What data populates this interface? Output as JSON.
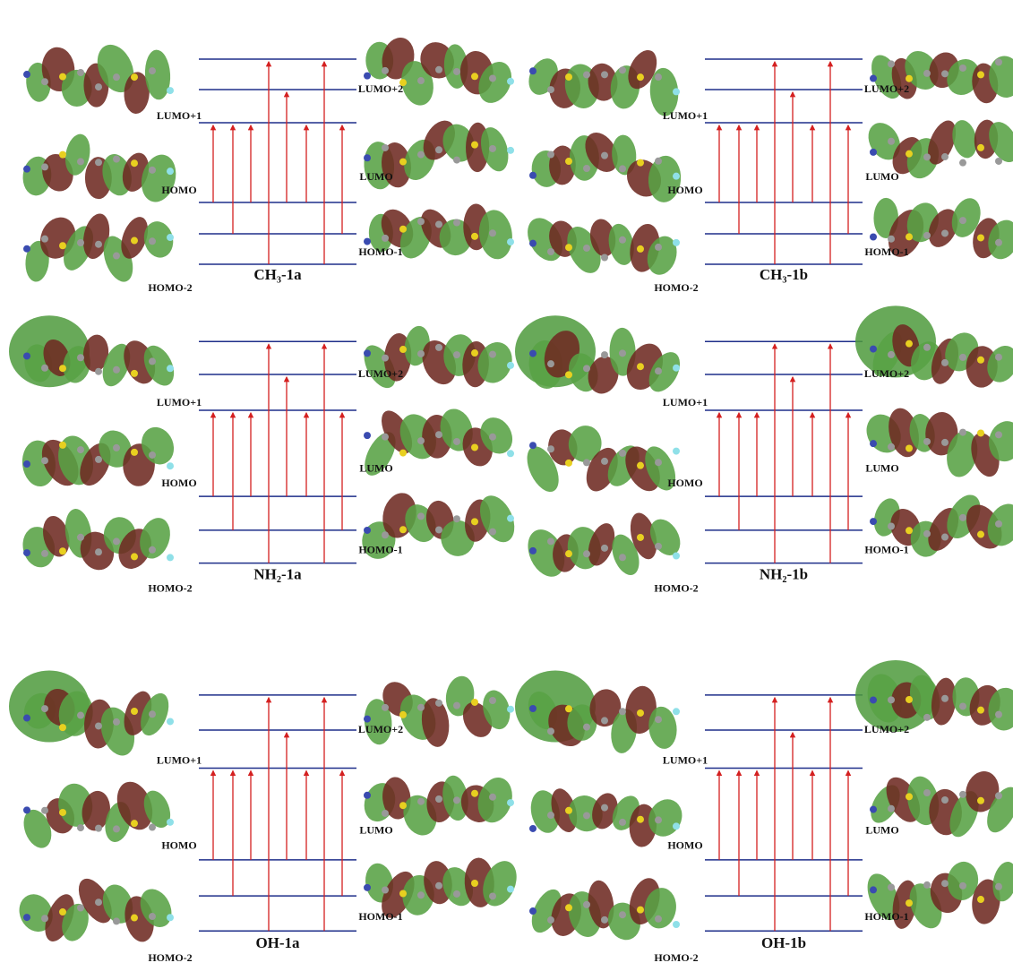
{
  "panels": [
    {
      "title": "CH₃-1a",
      "left_labels": [
        "LUMO+1",
        "HOMO",
        "HOMO-2"
      ],
      "right_labels": [
        "LUMO+2",
        "LUMO",
        "HOMO-1"
      ]
    },
    {
      "title": "CH₃-1b",
      "left_labels": [
        "LUMO+1",
        "HOMO",
        "HOMO-2"
      ],
      "right_labels": [
        "LUMO+2",
        "LUMO",
        "HOMO-1"
      ]
    },
    {
      "title": "NH₂-1a",
      "left_labels": [
        "LUMO+1",
        "HOMO",
        "HOMO-2"
      ],
      "right_labels": [
        "LUMO+2",
        "LUMO",
        "HOMO-1"
      ]
    },
    {
      "title": "NH₂-1b",
      "left_labels": [
        "LUMO+1",
        "HOMO",
        "HOMO-2"
      ],
      "right_labels": [
        "LUMO+2",
        "LUMO",
        "HOMO-1"
      ]
    },
    {
      "title": "OH-1a",
      "left_labels": [
        "LUMO+1",
        "HOMO",
        "HOMO-2"
      ],
      "right_labels": [
        "LUMO+2",
        "LUMO",
        "HOMO-1"
      ]
    },
    {
      "title": "OH-1b",
      "left_labels": [
        "LUMO+1",
        "HOMO",
        "HOMO-2"
      ],
      "right_labels": [
        "LUMO+2",
        "LUMO",
        "HOMO-1"
      ]
    }
  ]
}
